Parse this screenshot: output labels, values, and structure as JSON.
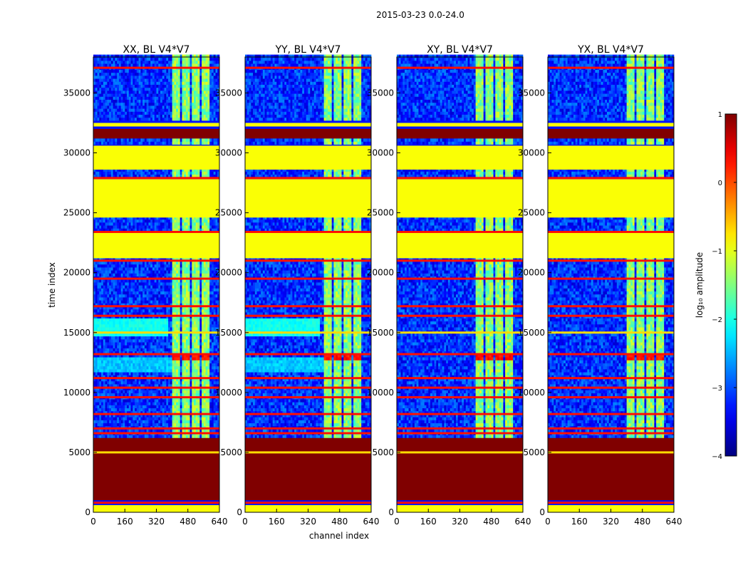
{
  "chart_data": {
    "type": "heatmap",
    "title": "2015-03-23 0.0-24.0",
    "xlabel": "channel index",
    "ylabel": "time index",
    "xlim": [
      0,
      640
    ],
    "ylim": [
      0,
      38000
    ],
    "xticks": [
      "0",
      "160",
      "320",
      "480",
      "640"
    ],
    "yticks": [
      "0",
      "5000",
      "10000",
      "15000",
      "20000",
      "25000",
      "30000",
      "35000"
    ],
    "panels": [
      {
        "title": "XX, BL V4*V7",
        "cross_pol": false
      },
      {
        "title": "YY, BL V4*V7",
        "cross_pol": false
      },
      {
        "title": "XY, BL V4*V7",
        "cross_pol": true
      },
      {
        "title": "YX, BL V4*V7",
        "cross_pol": true
      }
    ],
    "colorbar": {
      "label": "log₁₀ amplitude",
      "range": [
        -4,
        1
      ],
      "ticks": [
        "1",
        "0",
        "−1",
        "−2",
        "−3",
        "−4"
      ],
      "tick_values": [
        1,
        0,
        -1,
        -2,
        -3,
        -4
      ],
      "colormap": "jet"
    },
    "masked_time_ranges": [
      {
        "start": 0,
        "end": 600,
        "level": -0.9
      },
      {
        "start": 1000,
        "end": 6200,
        "level": 1.0
      },
      {
        "start": 21200,
        "end": 23400,
        "level": -0.9
      },
      {
        "start": 24600,
        "end": 27800,
        "level": -0.9
      },
      {
        "start": 28600,
        "end": 30600,
        "level": -0.9
      },
      {
        "start": 31200,
        "end": 32000,
        "level": 1.0
      },
      {
        "start": 32200,
        "end": 32500,
        "level": -0.9
      }
    ],
    "flag_lines": [
      {
        "time": 800,
        "level": 0.3
      },
      {
        "time": 5000,
        "level": -0.7
      },
      {
        "time": 6600,
        "level": 0.3
      },
      {
        "time": 7000,
        "level": 0.3
      },
      {
        "time": 8200,
        "level": 0.3
      },
      {
        "time": 9600,
        "level": 0.3
      },
      {
        "time": 10400,
        "level": 0.3
      },
      {
        "time": 11200,
        "level": 0.3
      },
      {
        "time": 13200,
        "level": 0.3
      },
      {
        "time": 15000,
        "level": -0.7
      },
      {
        "time": 16400,
        "level": 0.3
      },
      {
        "time": 17200,
        "level": 0.3
      },
      {
        "time": 19500,
        "level": 0.3
      },
      {
        "time": 21000,
        "level": 0.3
      },
      {
        "time": 23400,
        "level": 0.3
      },
      {
        "time": 27900,
        "level": 0.3
      },
      {
        "time": 37100,
        "level": 0.3
      }
    ],
    "rfi_channel_bands": [
      {
        "start": 400,
        "end": 435
      },
      {
        "start": 445,
        "end": 490
      },
      {
        "start": 500,
        "end": 535
      },
      {
        "start": 545,
        "end": 590
      }
    ]
  }
}
